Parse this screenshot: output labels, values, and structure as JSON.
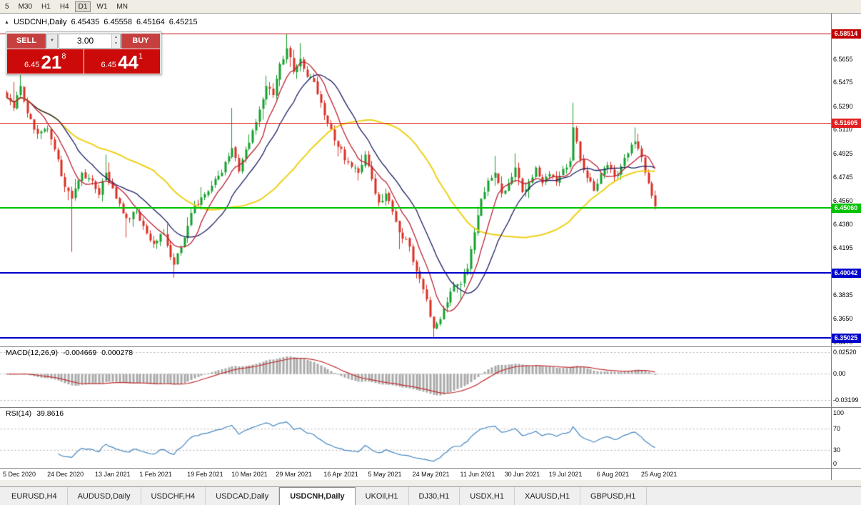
{
  "icons": {
    "panel_collapse": "▲",
    "dropdown": "▼",
    "spinner_up": "▲",
    "spinner_down": "▼"
  },
  "toolbar": {
    "timeframes": [
      {
        "label": "5",
        "active": false
      },
      {
        "label": "M30",
        "active": false
      },
      {
        "label": "H1",
        "active": false
      },
      {
        "label": "H4",
        "active": false
      },
      {
        "label": "D1",
        "active": true
      },
      {
        "label": "W1",
        "active": false
      },
      {
        "label": "MN",
        "active": false
      }
    ]
  },
  "chart": {
    "symbol": "USDCNH,Daily",
    "open": "6.45435",
    "high": "6.45558",
    "low": "6.45164",
    "close": "6.45215",
    "price_axis_labels": [
      "6.5655",
      "6.5475",
      "6.5290",
      "6.5110",
      "6.4925",
      "6.4745",
      "6.4560",
      "6.4380",
      "6.4195",
      "6.4015",
      "6.3835",
      "6.3650",
      "6.3470"
    ]
  },
  "trade_panel": {
    "sell_label": "SELL",
    "buy_label": "BUY",
    "volume": "3.00",
    "sell_price": {
      "small": "6.45",
      "big": "21",
      "sup": "8"
    },
    "buy_price": {
      "small": "6.45",
      "big": "44",
      "sup": "1"
    }
  },
  "macd": {
    "name": "MACD(12,26,9)",
    "value1": "-0.004669",
    "value2": "0.000278",
    "axis_labels": [
      "0.02520",
      "0.00",
      "-0.03199"
    ]
  },
  "rsi": {
    "name": "RSI(14)",
    "value": "39.8616",
    "axis_labels": [
      "100",
      "70",
      "30",
      "0"
    ]
  },
  "tabs": [
    {
      "label": "EURUSD,H4",
      "active": false
    },
    {
      "label": "AUDUSD,Daily",
      "active": false
    },
    {
      "label": "USDCHF,H4",
      "active": false
    },
    {
      "label": "USDCAD,Daily",
      "active": false
    },
    {
      "label": "USDCNH,Daily",
      "active": true
    },
    {
      "label": "UKOil,H1",
      "active": false
    },
    {
      "label": "DJ30,H1",
      "active": false
    },
    {
      "label": "USDX,H1",
      "active": false
    },
    {
      "label": "XAUUSD,H1",
      "active": false
    },
    {
      "label": "GBPUSD,H1",
      "active": false
    }
  ],
  "chart_data": {
    "type": "candlestick",
    "symbol": "USDCNH",
    "timeframe": "Daily",
    "ohlc_header": {
      "open": 6.45435,
      "high": 6.45558,
      "low": 6.45164,
      "close": 6.45215
    },
    "levels": [
      {
        "price": "6.58514",
        "color": "#c00000",
        "thickness": 1
      },
      {
        "price": "6.51605",
        "color": "#e02020",
        "thickness": 1
      },
      {
        "price": "6.45060",
        "color": "#00c300",
        "thickness": 2
      },
      {
        "price": "6.40042",
        "color": "#0000cc",
        "thickness": 2
      },
      {
        "price": "6.35025",
        "color": "#0000cc",
        "thickness": 2
      }
    ],
    "date_ticks": [
      {
        "label": "5 Dec 2020",
        "index": 0
      },
      {
        "label": "24 Dec 2020",
        "index": 13
      },
      {
        "label": "13 Jan 2021",
        "index": 27
      },
      {
        "label": "1 Feb 2021",
        "index": 40
      },
      {
        "label": "19 Feb 2021",
        "index": 54
      },
      {
        "label": "10 Mar 2021",
        "index": 67
      },
      {
        "label": "29 Mar 2021",
        "index": 80
      },
      {
        "label": "16 Apr 2021",
        "index": 94
      },
      {
        "label": "5 May 2021",
        "index": 107
      },
      {
        "label": "24 May 2021",
        "index": 120
      },
      {
        "label": "11 Jun 2021",
        "index": 134
      },
      {
        "label": "30 Jun 2021",
        "index": 147
      },
      {
        "label": "19 Jul 2021",
        "index": 160
      },
      {
        "label": "6 Aug 2021",
        "index": 174
      },
      {
        "label": "25 Aug 2021",
        "index": 187
      }
    ],
    "price_anchors": [
      [
        0,
        6.536,
        null,
        null
      ],
      [
        2,
        6.528,
        6.548,
        null
      ],
      [
        4,
        6.545,
        6.554,
        null
      ],
      [
        6,
        6.524,
        null,
        null
      ],
      [
        9,
        6.508,
        null,
        null
      ],
      [
        12,
        6.512,
        null,
        null
      ],
      [
        14,
        6.496,
        null,
        null
      ],
      [
        17,
        6.467,
        null,
        null
      ],
      [
        19,
        6.458,
        null,
        6.417
      ],
      [
        22,
        6.478,
        null,
        null
      ],
      [
        25,
        6.472,
        null,
        null
      ],
      [
        27,
        6.461,
        null,
        null
      ],
      [
        29,
        6.478,
        6.492,
        null
      ],
      [
        32,
        6.458,
        null,
        null
      ],
      [
        35,
        6.443,
        null,
        6.428
      ],
      [
        38,
        6.448,
        null,
        null
      ],
      [
        40,
        6.437,
        null,
        null
      ],
      [
        43,
        6.423,
        null,
        null
      ],
      [
        46,
        6.431,
        null,
        null
      ],
      [
        49,
        6.407,
        null,
        6.397
      ],
      [
        52,
        6.428,
        null,
        null
      ],
      [
        54,
        6.447,
        null,
        null
      ],
      [
        57,
        6.459,
        null,
        null
      ],
      [
        60,
        6.468,
        null,
        null
      ],
      [
        63,
        6.478,
        null,
        null
      ],
      [
        66,
        6.497,
        6.528,
        null
      ],
      [
        68,
        6.479,
        null,
        null
      ],
      [
        70,
        6.496,
        null,
        null
      ],
      [
        73,
        6.517,
        null,
        null
      ],
      [
        76,
        6.545,
        6.553,
        null
      ],
      [
        78,
        6.538,
        null,
        null
      ],
      [
        80,
        6.562,
        null,
        null
      ],
      [
        82,
        6.574,
        6.5851,
        null
      ],
      [
        84,
        6.556,
        null,
        null
      ],
      [
        86,
        6.566,
        6.578,
        null
      ],
      [
        88,
        6.552,
        null,
        null
      ],
      [
        90,
        6.548,
        null,
        null
      ],
      [
        92,
        6.532,
        null,
        null
      ],
      [
        94,
        6.516,
        null,
        null
      ],
      [
        97,
        6.498,
        null,
        null
      ],
      [
        100,
        6.486,
        null,
        null
      ],
      [
        103,
        6.478,
        null,
        null
      ],
      [
        105,
        6.492,
        null,
        null
      ],
      [
        107,
        6.473,
        null,
        null
      ],
      [
        109,
        6.455,
        null,
        null
      ],
      [
        111,
        6.462,
        null,
        null
      ],
      [
        113,
        6.448,
        null,
        null
      ],
      [
        115,
        6.432,
        null,
        6.419
      ],
      [
        118,
        6.421,
        null,
        null
      ],
      [
        120,
        6.402,
        null,
        null
      ],
      [
        122,
        6.388,
        null,
        null
      ],
      [
        125,
        6.358,
        null,
        6.3505
      ],
      [
        127,
        6.365,
        null,
        null
      ],
      [
        129,
        6.378,
        null,
        null
      ],
      [
        131,
        6.391,
        null,
        null
      ],
      [
        133,
        6.392,
        null,
        6.379
      ],
      [
        135,
        6.404,
        null,
        null
      ],
      [
        137,
        6.432,
        null,
        null
      ],
      [
        139,
        6.458,
        null,
        null
      ],
      [
        141,
        6.472,
        null,
        null
      ],
      [
        143,
        6.478,
        6.491,
        null
      ],
      [
        145,
        6.462,
        null,
        null
      ],
      [
        147,
        6.47,
        null,
        null
      ],
      [
        149,
        6.482,
        6.493,
        null
      ],
      [
        151,
        6.463,
        null,
        null
      ],
      [
        153,
        6.471,
        null,
        null
      ],
      [
        155,
        6.482,
        null,
        null
      ],
      [
        157,
        6.47,
        null,
        null
      ],
      [
        159,
        6.477,
        null,
        null
      ],
      [
        161,
        6.471,
        null,
        null
      ],
      [
        163,
        6.481,
        null,
        null
      ],
      [
        165,
        6.487,
        null,
        null
      ],
      [
        166,
        6.513,
        6.532,
        null
      ],
      [
        167,
        6.502,
        null,
        null
      ],
      [
        168,
        6.488,
        null,
        null
      ],
      [
        170,
        6.474,
        null,
        null
      ],
      [
        172,
        6.464,
        null,
        null
      ],
      [
        174,
        6.477,
        null,
        null
      ],
      [
        176,
        6.484,
        null,
        null
      ],
      [
        178,
        6.475,
        null,
        null
      ],
      [
        180,
        6.483,
        null,
        null
      ],
      [
        182,
        6.493,
        null,
        null
      ],
      [
        184,
        6.502,
        6.513,
        null
      ],
      [
        186,
        6.49,
        null,
        null
      ],
      [
        188,
        6.47,
        null,
        null
      ],
      [
        190,
        6.452,
        null,
        6.4495
      ]
    ],
    "moving_averages": [
      {
        "period": 8,
        "color": "#bb2233"
      },
      {
        "period": 17,
        "color": "#1b1e63"
      },
      {
        "period": 44,
        "color": "#efd117"
      }
    ],
    "indicators": {
      "macd": {
        "fast": 12,
        "slow": 26,
        "signal": 9,
        "histogram_color": "#a9a9a9",
        "signal_color": "#c03030"
      },
      "rsi": {
        "period": 14,
        "color": "#4486c0",
        "levels": [
          70,
          30
        ]
      }
    },
    "colors": {
      "up": "#14a02c",
      "down": "#d93025",
      "background": "#ffffff"
    }
  }
}
